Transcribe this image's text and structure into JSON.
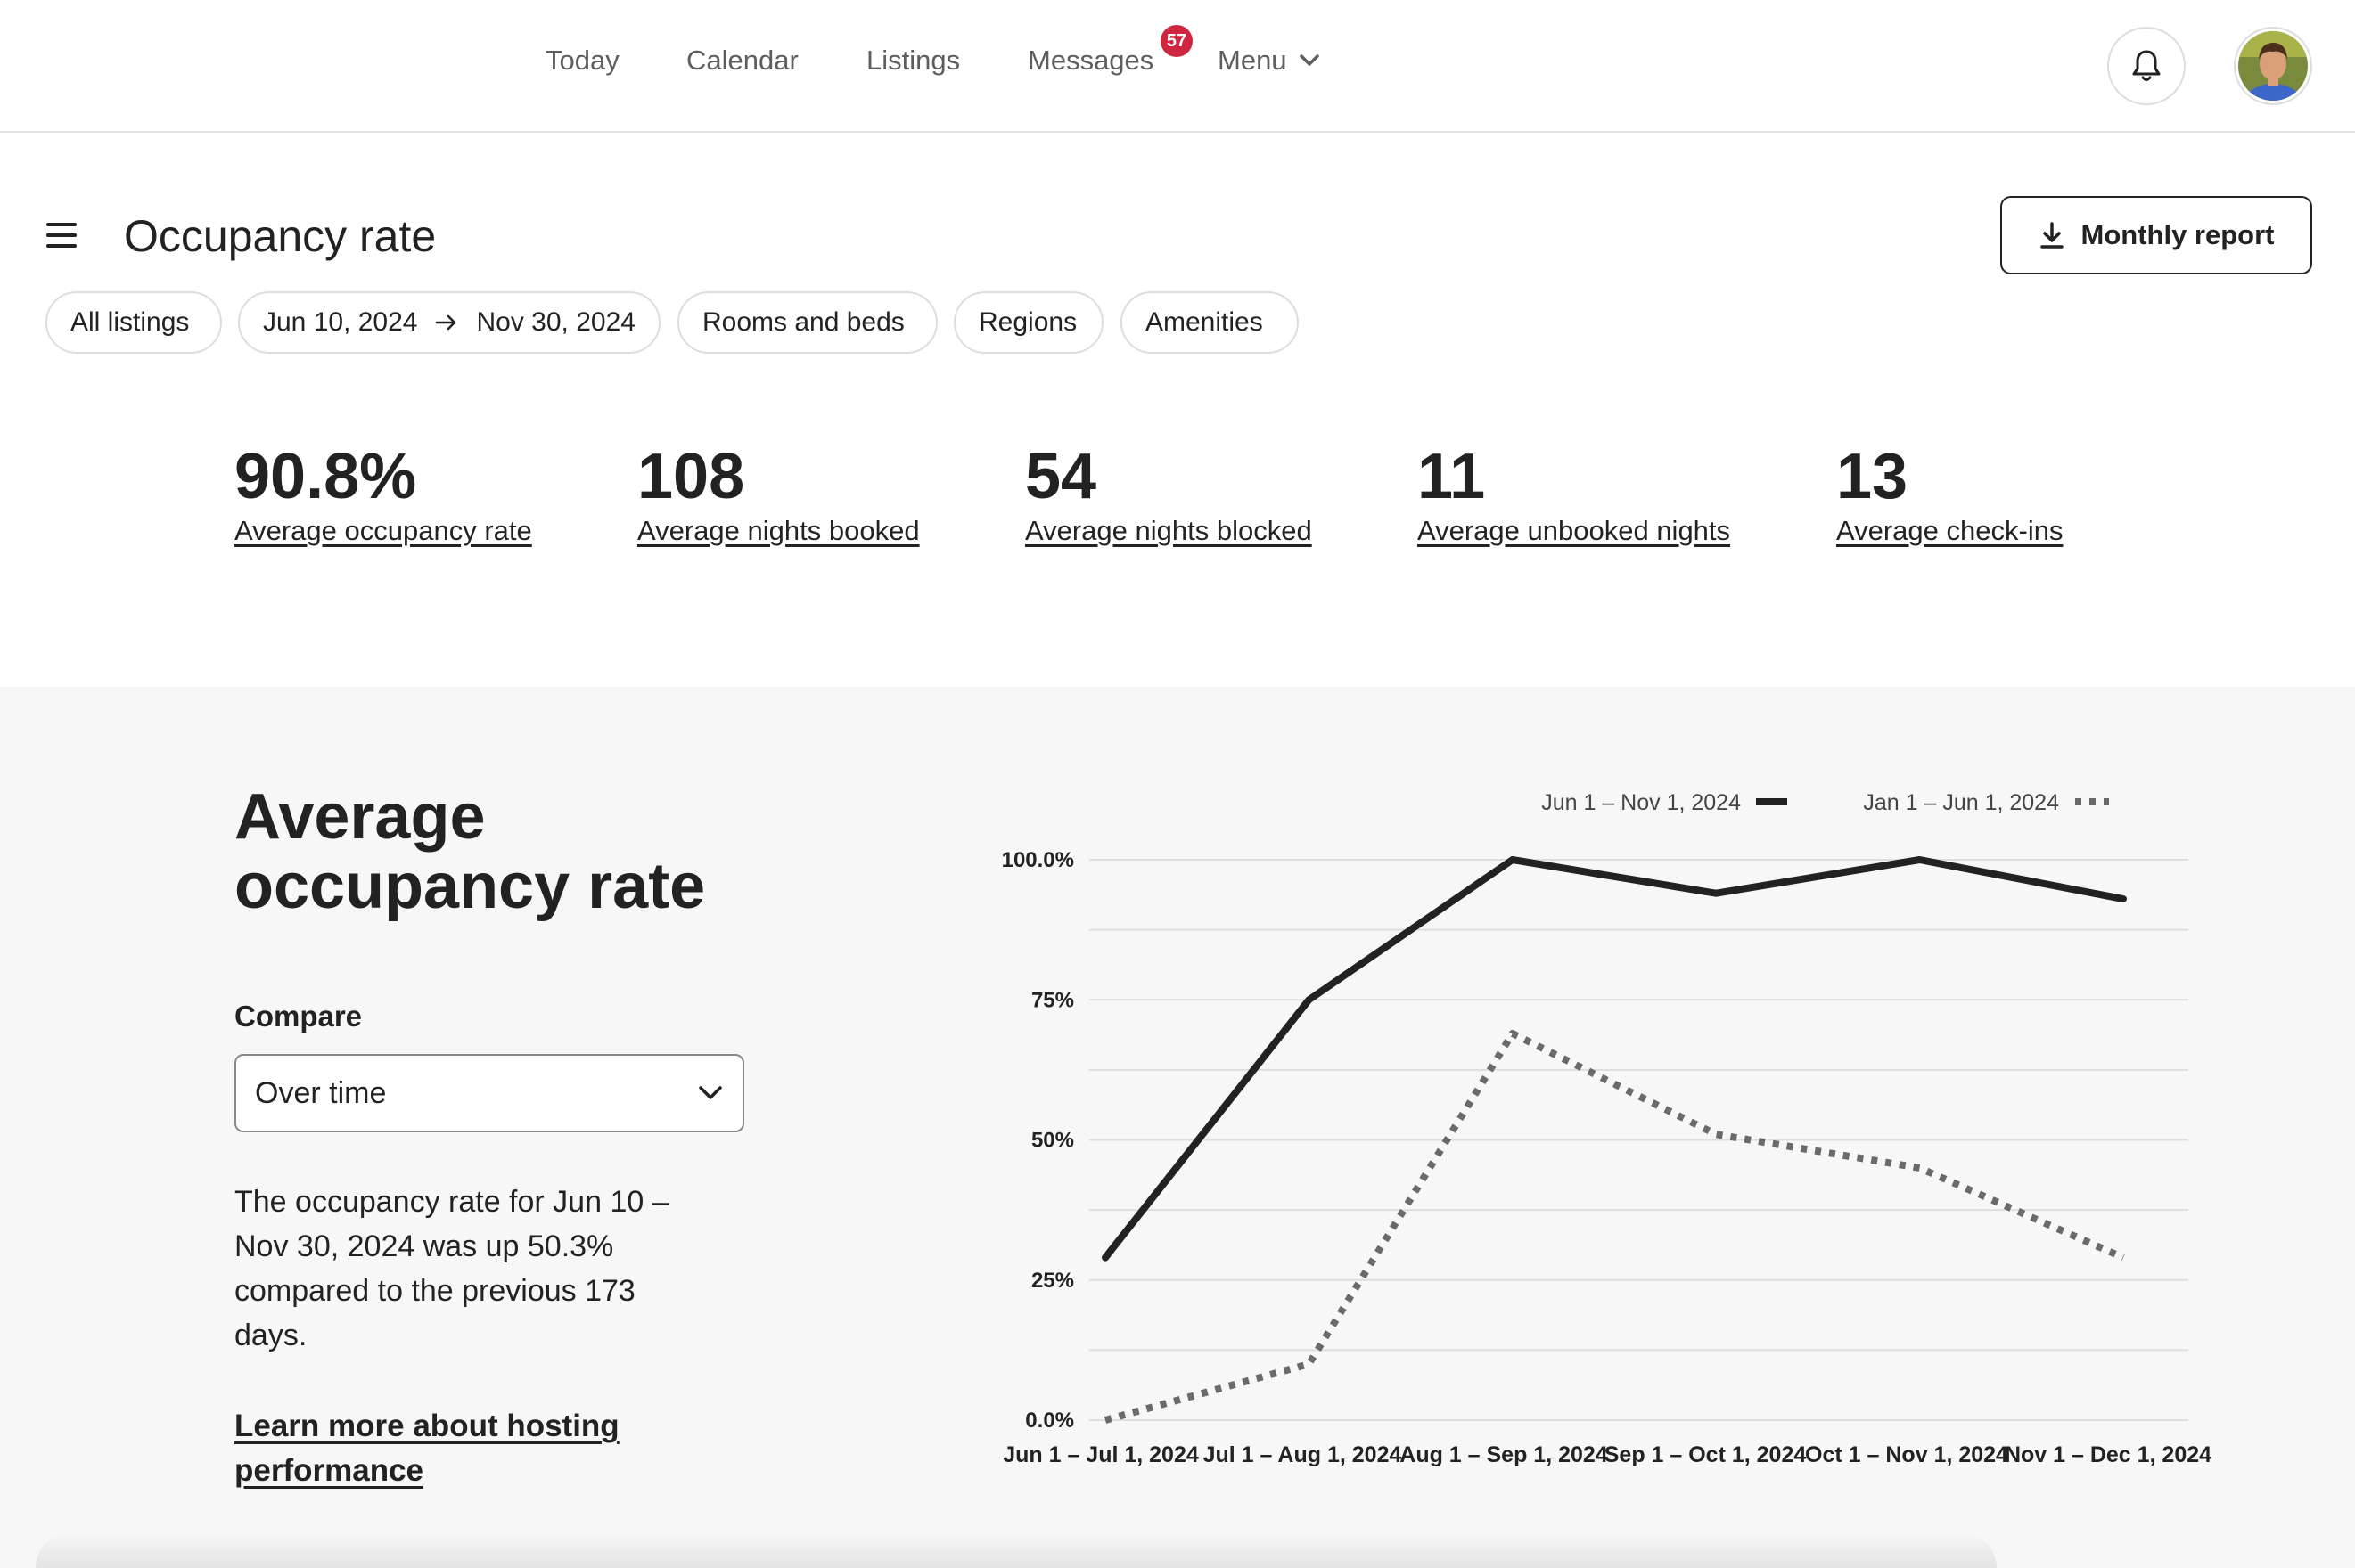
{
  "nav": {
    "today": "Today",
    "calendar": "Calendar",
    "listings": "Listings",
    "messages": "Messages",
    "messages_badge": "57",
    "menu": "Menu"
  },
  "header": {
    "title": "Occupancy rate",
    "report_button": "Monthly report"
  },
  "filters": {
    "all_listings": "All listings",
    "date_start": "Jun 10, 2024",
    "date_end": "Nov 30, 2024",
    "rooms": "Rooms and beds",
    "regions": "Regions",
    "amenities": "Amenities"
  },
  "stats": [
    {
      "value": "90.8%",
      "label": "Average occupancy rate"
    },
    {
      "value": "108",
      "label": "Average nights booked"
    },
    {
      "value": "54",
      "label": "Average nights blocked"
    },
    {
      "value": "11",
      "label": "Average unbooked nights"
    },
    {
      "value": "13",
      "label": "Average check-ins"
    }
  ],
  "section": {
    "title": "Average occupancy rate",
    "compare_label": "Compare",
    "compare_value": "Over time",
    "description": "The occupancy rate for Jun 10 – Nov 30, 2024 was up 50.3% compared to the previous 173 days.",
    "learn_more": "Learn more about hosting performance"
  },
  "colors": {
    "badge": "#d0253f",
    "line_current": "#222222",
    "line_previous": "#6a6a6a",
    "panel_bg": "#f7f7f7"
  },
  "chart_data": {
    "type": "line",
    "categories": [
      "Jun 1 – Jul 1, 2024",
      "Jul 1 – Aug 1, 2024",
      "Aug 1 – Sep 1, 2024",
      "Sep 1 – Oct 1, 2024",
      "Oct 1 – Nov 1, 2024",
      "Nov 1 – Dec 1, 2024"
    ],
    "series": [
      {
        "name": "Jun 1 – Nov 1, 2024",
        "style": "solid",
        "values": [
          29,
          75,
          100,
          94,
          100,
          93
        ]
      },
      {
        "name": "Jan 1 – Jun 1, 2024",
        "style": "dotted",
        "values": [
          0,
          10,
          69,
          51,
          45,
          29
        ]
      }
    ],
    "yticks": [
      "0.0%",
      "25%",
      "50%",
      "75%",
      "100.0%"
    ],
    "ylim": [
      0,
      100
    ],
    "grid": true,
    "legend": "top-right"
  }
}
